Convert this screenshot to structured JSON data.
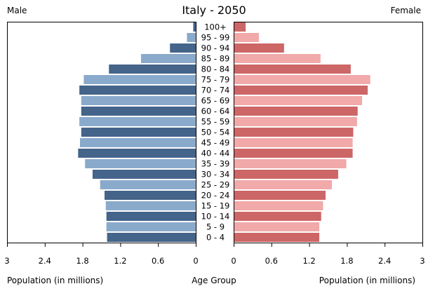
{
  "chart_data": {
    "type": "bar",
    "title": "Italy - 2050",
    "left_label": "Male",
    "right_label": "Female",
    "xlabel_left": "Population (in millions)",
    "xlabel_center": "Age Group",
    "xlabel_right": "Population (in millions)",
    "xlim": [
      0,
      3
    ],
    "tick_labels_left": [
      "3",
      "2.4",
      "1.8",
      "1.2",
      "0.6",
      "0"
    ],
    "tick_labels_right": [
      "0",
      "0.6",
      "1.2",
      "1.8",
      "2.4",
      "3"
    ],
    "categories": [
      "100+",
      "95 - 99",
      "90 - 94",
      "85 - 89",
      "80 - 84",
      "75 - 79",
      "70 - 74",
      "65 - 69",
      "60 - 64",
      "55 - 59",
      "50 - 54",
      "45 - 49",
      "40 - 44",
      "35 - 39",
      "30 - 34",
      "25 - 29",
      "20 - 24",
      "15 - 19",
      "10 - 14",
      "5 - 9",
      "0 - 4"
    ],
    "series": [
      {
        "name": "Male",
        "values": [
          0.04,
          0.14,
          0.41,
          0.87,
          1.38,
          1.78,
          1.85,
          1.82,
          1.82,
          1.85,
          1.82,
          1.84,
          1.87,
          1.76,
          1.64,
          1.52,
          1.45,
          1.43,
          1.42,
          1.42,
          1.41
        ]
      },
      {
        "name": "Female",
        "values": [
          0.18,
          0.39,
          0.79,
          1.37,
          1.85,
          2.16,
          2.12,
          2.03,
          1.96,
          1.95,
          1.89,
          1.88,
          1.88,
          1.78,
          1.65,
          1.55,
          1.45,
          1.41,
          1.38,
          1.35,
          1.35
        ]
      }
    ],
    "colors": {
      "male_dark": "#44648a",
      "male_light": "#8aaacc",
      "female_dark": "#cd6666",
      "female_light": "#f1a9a9"
    }
  }
}
